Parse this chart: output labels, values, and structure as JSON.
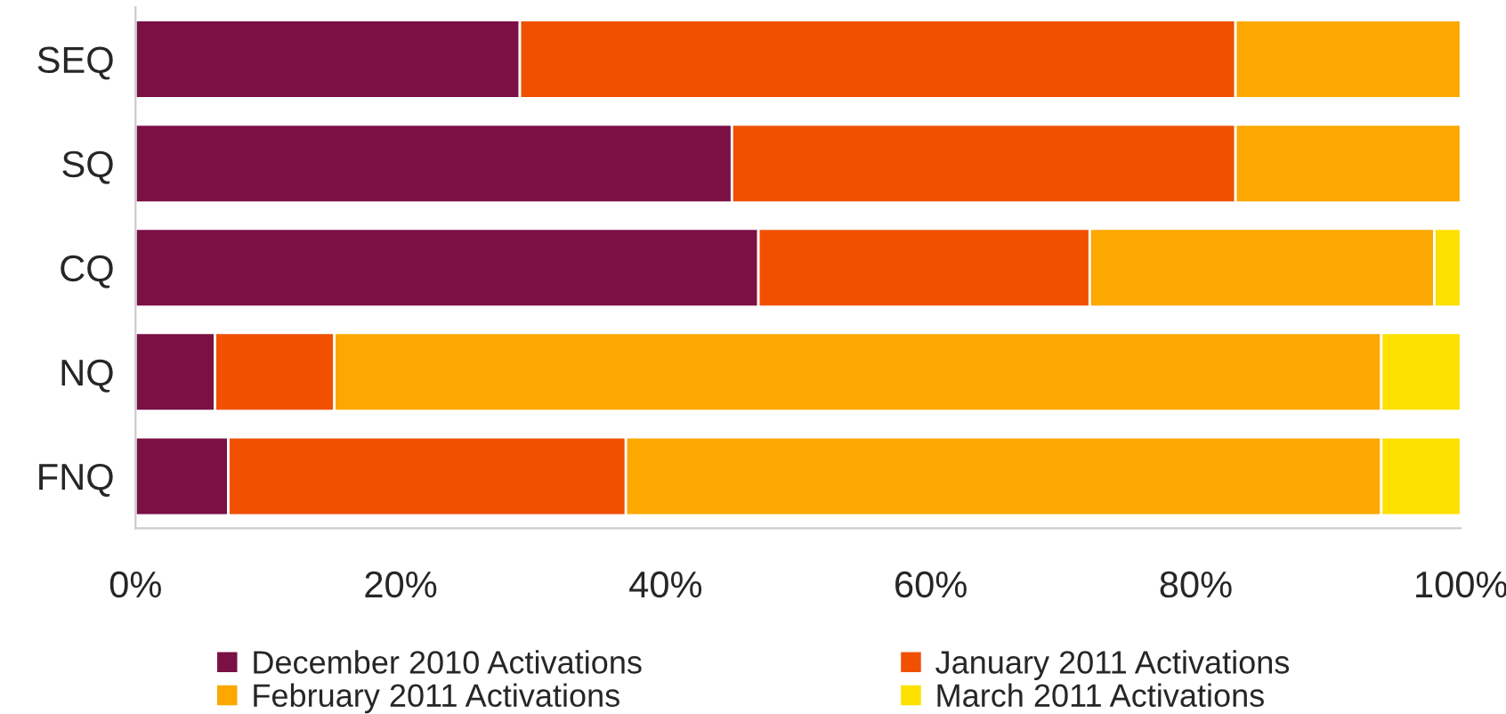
{
  "chart_data": {
    "type": "bar",
    "orientation": "horizontal",
    "stacked": true,
    "categories": [
      "SEQ",
      "SQ",
      "CQ",
      "NQ",
      "FNQ"
    ],
    "series": [
      {
        "name": "December 2010 Activations",
        "color": "#7b1045",
        "values": [
          29,
          45,
          47,
          6,
          7
        ]
      },
      {
        "name": "January 2011 Activations",
        "color": "#f05000",
        "values": [
          54,
          38,
          25,
          9,
          30
        ]
      },
      {
        "name": "February 2011 Activations",
        "color": "#fca800",
        "values": [
          17,
          17,
          26,
          79,
          57
        ]
      },
      {
        "name": "March 2011 Activations",
        "color": "#fce000",
        "values": [
          null,
          null,
          2,
          6,
          6
        ]
      }
    ],
    "xlim": [
      0,
      100
    ],
    "xticks": [
      {
        "value": 0,
        "label": "0%"
      },
      {
        "value": 20,
        "label": "20%"
      },
      {
        "value": 40,
        "label": "40%"
      },
      {
        "value": 60,
        "label": "60%"
      },
      {
        "value": 80,
        "label": "80%"
      },
      {
        "value": 100,
        "label": "100%"
      }
    ],
    "grid": false,
    "legend": "bottom"
  }
}
